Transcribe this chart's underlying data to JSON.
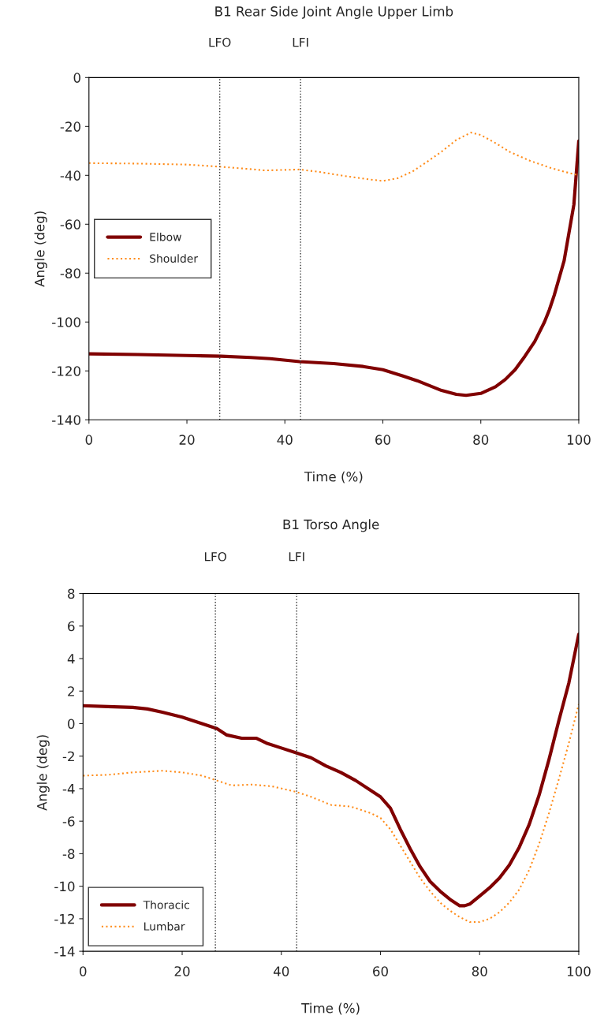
{
  "chart_data": [
    {
      "type": "line",
      "title": "B1 Rear Side Joint Angle Upper Limb",
      "xlabel": "Time (%)",
      "ylabel": "Angle (deg)",
      "xlim": [
        0,
        100
      ],
      "xticks": [
        0,
        20,
        40,
        60,
        80,
        100
      ],
      "ylim": [
        -140,
        0
      ],
      "yticks": [
        -140,
        -120,
        -100,
        -80,
        -60,
        -40,
        -20,
        0
      ],
      "grid": false,
      "legend": "left",
      "marker": "none",
      "ref_lines": [
        {
          "axis": "x",
          "value": 26.7,
          "label": "LFO",
          "line_style": "dotted",
          "color": "#333333"
        },
        {
          "axis": "x",
          "value": 43.2,
          "label": "LFI",
          "line_style": "dotted",
          "color": "#333333"
        }
      ],
      "series": [
        {
          "name": "Elbow",
          "color": "#800000",
          "line_style": "solid",
          "x": [
            0,
            10,
            20,
            27,
            33,
            37,
            43,
            50,
            56,
            60,
            64,
            67,
            72,
            75,
            77,
            80,
            83,
            85,
            87,
            89,
            91,
            93,
            94,
            95,
            97,
            99,
            100
          ],
          "values": [
            -113,
            -113.3,
            -113.7,
            -114,
            -114.5,
            -115,
            -116.2,
            -117,
            -118.2,
            -119.5,
            -122,
            -124,
            -128,
            -129.6,
            -130,
            -129.2,
            -126.5,
            -123.5,
            -119.5,
            -114,
            -108,
            -100,
            -95,
            -89,
            -75,
            -52,
            -26
          ]
        },
        {
          "name": "Shoulder",
          "color": "#ff8c1a",
          "line_style": "dotted",
          "x": [
            0,
            10,
            20,
            27,
            32,
            36,
            43,
            47,
            52,
            57,
            60,
            63,
            66,
            69,
            72,
            75,
            78,
            80,
            83,
            86,
            90,
            94,
            97,
            100
          ],
          "values": [
            -35,
            -35.2,
            -35.6,
            -36.5,
            -37.3,
            -38,
            -37.6,
            -38.6,
            -40.2,
            -41.6,
            -42.3,
            -41.2,
            -38.5,
            -34.5,
            -30.3,
            -25.5,
            -22.5,
            -23.5,
            -26.8,
            -30.5,
            -34,
            -36.8,
            -38.5,
            -40
          ]
        }
      ]
    },
    {
      "type": "line",
      "title": "B1 Torso Angle",
      "xlabel": "Time (%)",
      "ylabel": "Angle (deg)",
      "xlim": [
        0,
        100
      ],
      "xticks": [
        0,
        20,
        40,
        60,
        80,
        100
      ],
      "ylim": [
        -14,
        8
      ],
      "yticks": [
        -14,
        -12,
        -10,
        -8,
        -6,
        -4,
        -2,
        0,
        2,
        4,
        6,
        8
      ],
      "grid": false,
      "legend": "bottom left",
      "marker": "none",
      "ref_lines": [
        {
          "axis": "x",
          "value": 26.7,
          "label": "LFO",
          "line_style": "dotted",
          "color": "#333333"
        },
        {
          "axis": "x",
          "value": 43.1,
          "label": "LFI",
          "line_style": "dotted",
          "color": "#333333"
        }
      ],
      "series": [
        {
          "name": "Thoracic",
          "color": "#800000",
          "line_style": "solid",
          "x": [
            0,
            5,
            10,
            13,
            16,
            20,
            24,
            27,
            29,
            32,
            35,
            37,
            40,
            43,
            46,
            49,
            52,
            55,
            58,
            60,
            62,
            64,
            66,
            68,
            70,
            72,
            74,
            76,
            77,
            78,
            80,
            82,
            84,
            86,
            88,
            90,
            92,
            94,
            96,
            98,
            100
          ],
          "values": [
            1.1,
            1.05,
            1.0,
            0.9,
            0.7,
            0.4,
            0.0,
            -0.3,
            -0.7,
            -0.9,
            -0.9,
            -1.2,
            -1.5,
            -1.8,
            -2.1,
            -2.6,
            -3.0,
            -3.5,
            -4.1,
            -4.5,
            -5.2,
            -6.5,
            -7.7,
            -8.8,
            -9.7,
            -10.3,
            -10.8,
            -11.2,
            -11.2,
            -11.1,
            -10.6,
            -10.1,
            -9.5,
            -8.7,
            -7.6,
            -6.2,
            -4.4,
            -2.2,
            0.2,
            2.5,
            5.5
          ]
        },
        {
          "name": "Lumbar",
          "color": "#ff8c1a",
          "line_style": "dotted",
          "x": [
            0,
            5,
            10,
            16,
            20,
            24,
            27,
            30,
            34,
            38,
            43,
            46,
            50,
            54,
            58,
            60,
            62,
            64,
            66,
            68,
            70,
            72,
            74,
            76,
            78,
            80,
            82,
            84,
            86,
            88,
            90,
            92,
            94,
            96,
            98,
            100
          ],
          "values": [
            -3.2,
            -3.15,
            -3.0,
            -2.9,
            -3.0,
            -3.2,
            -3.5,
            -3.8,
            -3.75,
            -3.85,
            -4.2,
            -4.5,
            -5.0,
            -5.1,
            -5.5,
            -5.8,
            -6.5,
            -7.5,
            -8.5,
            -9.5,
            -10.3,
            -11.0,
            -11.5,
            -11.9,
            -12.2,
            -12.2,
            -12.0,
            -11.6,
            -11.0,
            -10.2,
            -9.0,
            -7.4,
            -5.5,
            -3.4,
            -1.2,
            1.2
          ]
        }
      ]
    }
  ]
}
